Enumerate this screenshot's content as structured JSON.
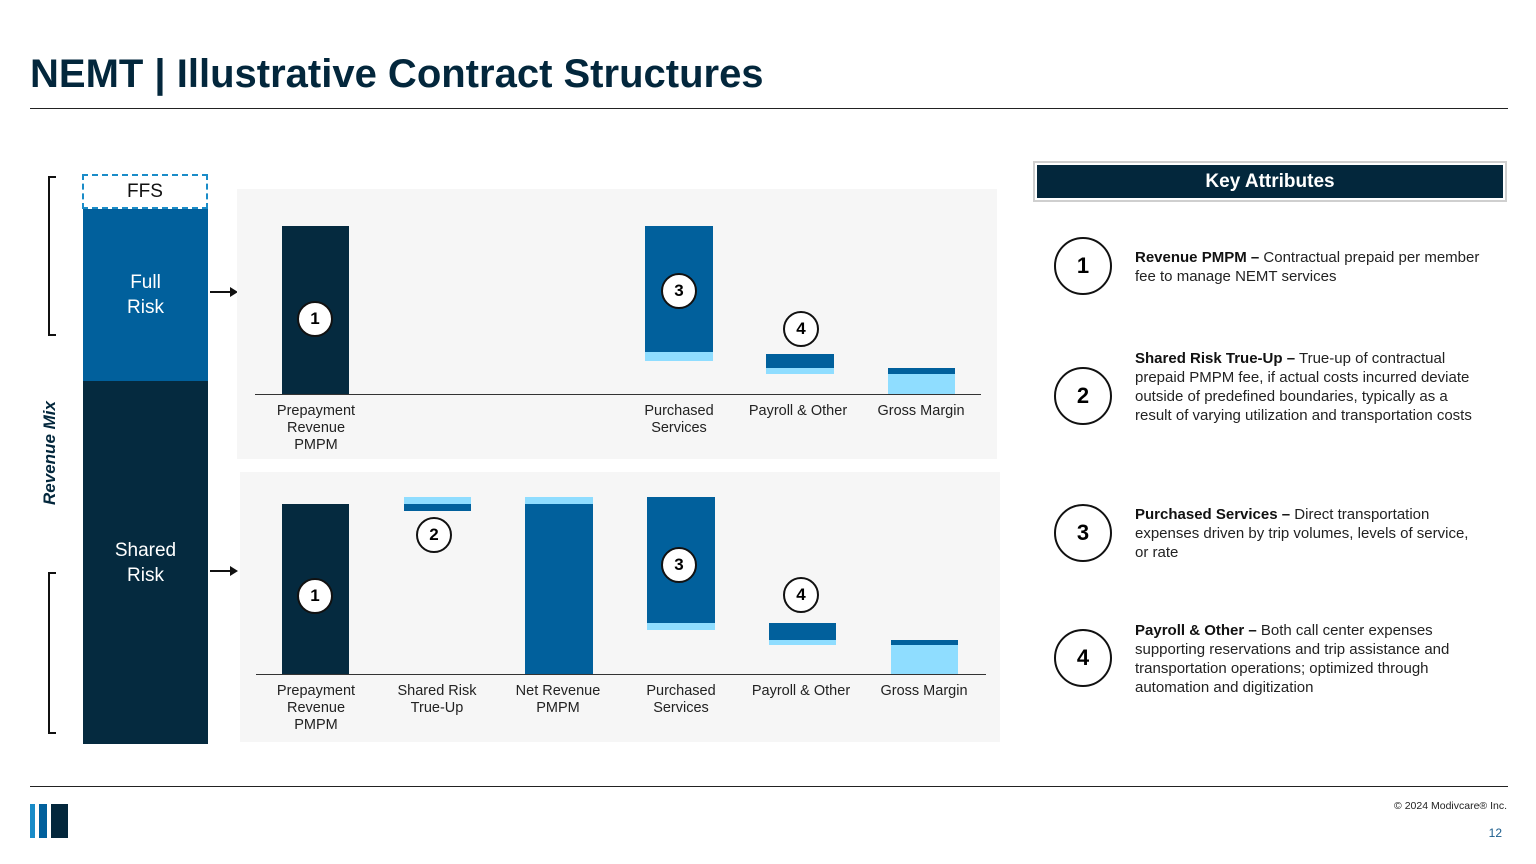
{
  "title": "NEMT | Illustrative Contract Structures",
  "colors": {
    "navy": "#052a3f",
    "blue": "#01609c",
    "light_blue": "#8fddff",
    "panel": "#f6f6f6"
  },
  "revenue_mix": {
    "axis_label": "Revenue Mix",
    "ffs": "FFS",
    "full_risk": "Full Risk",
    "shared_risk": "Shared Risk"
  },
  "full_risk_chart": {
    "labels": {
      "prepayment": "Prepayment Revenue PMPM",
      "purchased": "Purchased Services",
      "payroll": "Payroll & Other",
      "margin": "Gross Margin"
    },
    "markers": {
      "prepayment": "1",
      "purchased": "3",
      "payroll": "4"
    }
  },
  "shared_risk_chart": {
    "labels": {
      "prepayment": "Prepayment Revenue PMPM",
      "trueup": "Shared Risk True-Up",
      "net": "Net Revenue PMPM",
      "purchased": "Purchased Services",
      "payroll": "Payroll & Other",
      "margin": "Gross Margin"
    },
    "markers": {
      "prepayment": "1",
      "trueup": "2",
      "purchased": "3",
      "payroll": "4"
    }
  },
  "key_attributes": {
    "header": "Key Attributes",
    "items": [
      {
        "num": "1",
        "term": "Revenue PMPM –",
        "desc": "Contractual prepaid per member fee to manage NEMT services"
      },
      {
        "num": "2",
        "term": "Shared Risk True-Up –",
        "desc": "True-up of contractual prepaid PMPM fee, if actual costs incurred deviate outside of predefined boundaries, typically as a result of varying utilization and transportation costs"
      },
      {
        "num": "3",
        "term": "Purchased Services –",
        "desc": "Direct transportation expenses driven by trip volumes, levels of service, or rate"
      },
      {
        "num": "4",
        "term": "Payroll & Other –",
        "desc": "Both call center expenses supporting reservations and trip assistance and transportation operations; optimized through automation and digitization"
      }
    ]
  },
  "footer": {
    "copyright": "© 2024 Modivcare® Inc.",
    "page": "12"
  }
}
